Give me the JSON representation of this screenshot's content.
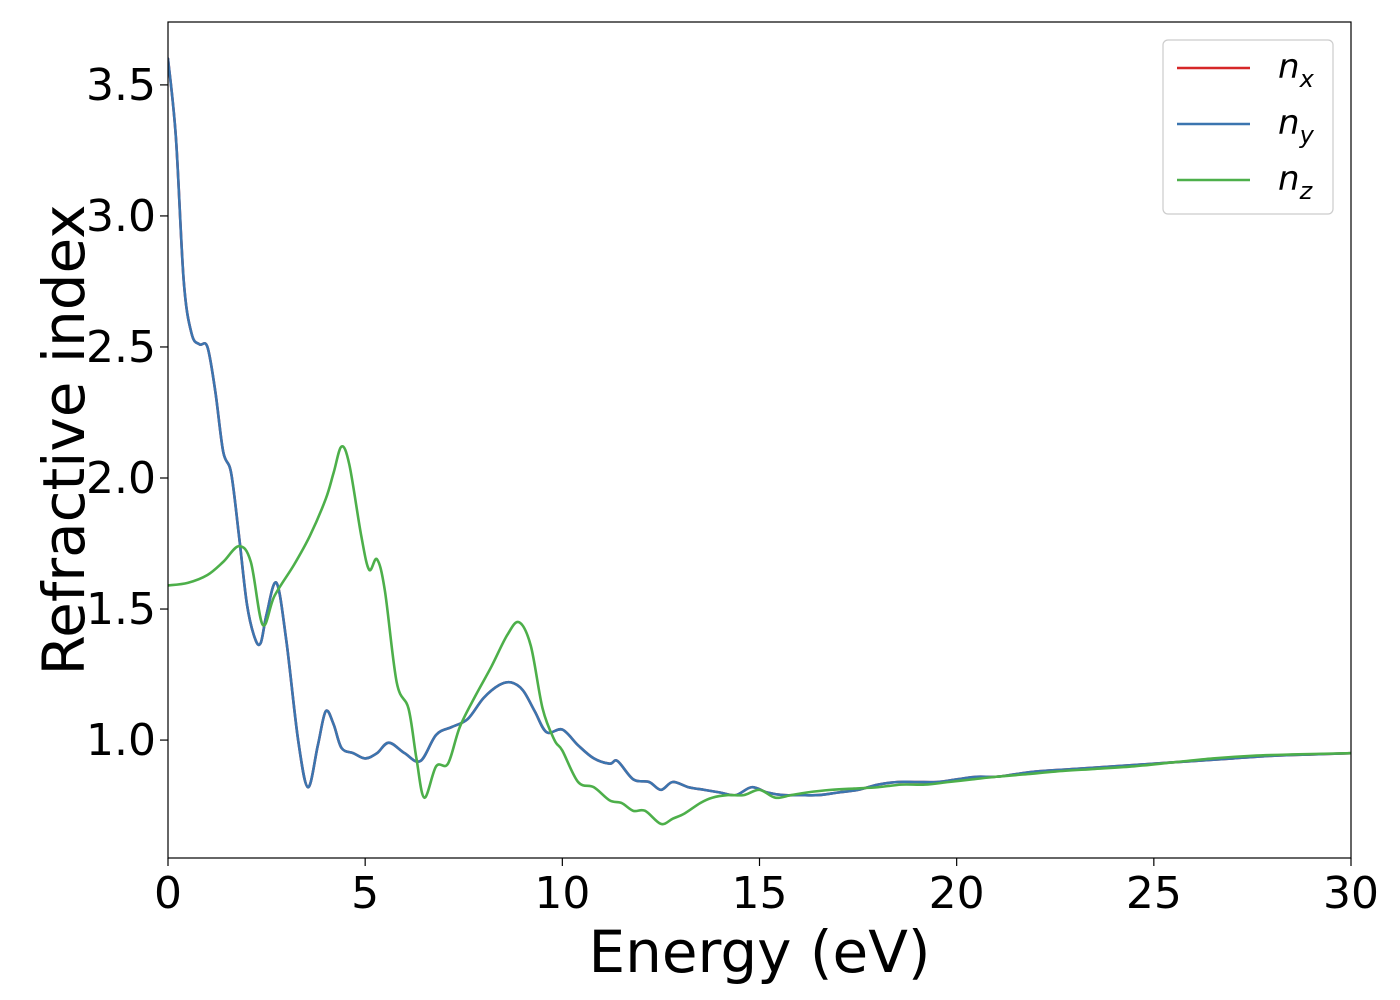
{
  "chart_data": {
    "type": "line",
    "title": "",
    "xlabel": "Energy (eV)",
    "ylabel": "Refractive index",
    "xlim": [
      0,
      30
    ],
    "ylim": [
      0.55,
      3.74
    ],
    "xticks": [
      0,
      5,
      10,
      15,
      20,
      25,
      30
    ],
    "xtick_labels": [
      "0",
      "5",
      "10",
      "15",
      "20",
      "25",
      "30"
    ],
    "yticks": [
      1.0,
      1.5,
      2.0,
      2.5,
      3.0,
      3.5
    ],
    "ytick_labels": [
      "1.0",
      "1.5",
      "2.0",
      "2.5",
      "3.0",
      "3.5"
    ],
    "grid": false,
    "legend_position": "top-right",
    "series": [
      {
        "name": "n_x",
        "label_base": "n",
        "label_sub": "x",
        "color": "#d62728",
        "x": [
          0,
          0.2,
          0.4,
          0.6,
          0.8,
          1.0,
          1.2,
          1.4,
          1.6,
          1.8,
          2.0,
          2.2,
          2.35,
          2.5,
          2.75,
          3.0,
          3.3,
          3.55,
          3.8,
          4.0,
          4.2,
          4.4,
          4.7,
          5.0,
          5.3,
          5.6,
          6.0,
          6.4,
          6.8,
          7.2,
          7.6,
          8.0,
          8.4,
          8.7,
          9.0,
          9.3,
          9.6,
          10.0,
          10.4,
          10.8,
          11.2,
          11.4,
          11.8,
          12.2,
          12.5,
          12.8,
          13.2,
          13.6,
          14.0,
          14.4,
          14.8,
          15.2,
          15.6,
          16.0,
          16.5,
          17.0,
          17.5,
          18.0,
          18.5,
          19.0,
          19.5,
          20.0,
          20.5,
          21.0,
          21.5,
          22.0,
          23.0,
          24.0,
          25.0,
          26.0,
          27.0,
          28.0,
          29.0,
          30.0
        ],
        "y": [
          3.6,
          3.3,
          2.75,
          2.55,
          2.51,
          2.5,
          2.33,
          2.1,
          2.02,
          1.78,
          1.52,
          1.39,
          1.37,
          1.48,
          1.6,
          1.38,
          1.0,
          0.82,
          0.98,
          1.11,
          1.06,
          0.97,
          0.95,
          0.93,
          0.95,
          0.99,
          0.95,
          0.92,
          1.02,
          1.05,
          1.08,
          1.16,
          1.21,
          1.22,
          1.19,
          1.11,
          1.03,
          1.04,
          0.98,
          0.93,
          0.91,
          0.92,
          0.85,
          0.84,
          0.81,
          0.84,
          0.82,
          0.81,
          0.8,
          0.79,
          0.82,
          0.8,
          0.79,
          0.79,
          0.79,
          0.8,
          0.81,
          0.83,
          0.84,
          0.84,
          0.84,
          0.85,
          0.86,
          0.86,
          0.87,
          0.88,
          0.89,
          0.9,
          0.91,
          0.92,
          0.93,
          0.94,
          0.945,
          0.95
        ]
      },
      {
        "name": "n_y",
        "label_base": "n",
        "label_sub": "y",
        "color": "#3b75af",
        "x": [
          0,
          0.2,
          0.4,
          0.6,
          0.8,
          1.0,
          1.2,
          1.4,
          1.6,
          1.8,
          2.0,
          2.2,
          2.35,
          2.5,
          2.75,
          3.0,
          3.3,
          3.55,
          3.8,
          4.0,
          4.2,
          4.4,
          4.7,
          5.0,
          5.3,
          5.6,
          6.0,
          6.4,
          6.8,
          7.2,
          7.6,
          8.0,
          8.4,
          8.7,
          9.0,
          9.3,
          9.6,
          10.0,
          10.4,
          10.8,
          11.2,
          11.4,
          11.8,
          12.2,
          12.5,
          12.8,
          13.2,
          13.6,
          14.0,
          14.4,
          14.8,
          15.2,
          15.6,
          16.0,
          16.5,
          17.0,
          17.5,
          18.0,
          18.5,
          19.0,
          19.5,
          20.0,
          20.5,
          21.0,
          21.5,
          22.0,
          23.0,
          24.0,
          25.0,
          26.0,
          27.0,
          28.0,
          29.0,
          30.0
        ],
        "y": [
          3.6,
          3.3,
          2.75,
          2.55,
          2.51,
          2.5,
          2.33,
          2.1,
          2.02,
          1.78,
          1.52,
          1.39,
          1.37,
          1.48,
          1.6,
          1.38,
          1.0,
          0.82,
          0.98,
          1.11,
          1.06,
          0.97,
          0.95,
          0.93,
          0.95,
          0.99,
          0.95,
          0.92,
          1.02,
          1.05,
          1.08,
          1.16,
          1.21,
          1.22,
          1.19,
          1.11,
          1.03,
          1.04,
          0.98,
          0.93,
          0.91,
          0.92,
          0.85,
          0.84,
          0.81,
          0.84,
          0.82,
          0.81,
          0.8,
          0.79,
          0.82,
          0.8,
          0.79,
          0.79,
          0.79,
          0.8,
          0.81,
          0.83,
          0.84,
          0.84,
          0.84,
          0.85,
          0.86,
          0.86,
          0.87,
          0.88,
          0.89,
          0.9,
          0.91,
          0.92,
          0.93,
          0.94,
          0.945,
          0.95
        ]
      },
      {
        "name": "n_z",
        "label_base": "n",
        "label_sub": "z",
        "color": "#4daf4a",
        "x": [
          0,
          0.5,
          1.0,
          1.4,
          1.8,
          2.1,
          2.4,
          2.7,
          3.2,
          3.6,
          4.0,
          4.2,
          4.4,
          4.6,
          4.9,
          5.1,
          5.3,
          5.5,
          5.8,
          6.1,
          6.3,
          6.5,
          6.8,
          7.1,
          7.4,
          7.8,
          8.2,
          8.6,
          8.9,
          9.2,
          9.5,
          9.8,
          10.0,
          10.4,
          10.8,
          11.2,
          11.5,
          11.8,
          12.1,
          12.5,
          12.8,
          13.1,
          13.5,
          13.8,
          14.2,
          14.6,
          15.0,
          15.4,
          15.8,
          16.2,
          16.8,
          17.4,
          18.0,
          18.6,
          19.2,
          19.8,
          20.4,
          21.0,
          21.8,
          22.5,
          23.5,
          24.5,
          25.5,
          26.5,
          27.5,
          28.5,
          30.0
        ],
        "y": [
          1.59,
          1.6,
          1.63,
          1.68,
          1.74,
          1.68,
          1.44,
          1.55,
          1.67,
          1.78,
          1.92,
          2.02,
          2.12,
          2.05,
          1.78,
          1.65,
          1.69,
          1.57,
          1.22,
          1.12,
          0.93,
          0.78,
          0.9,
          0.91,
          1.05,
          1.17,
          1.28,
          1.4,
          1.45,
          1.36,
          1.12,
          1.0,
          0.96,
          0.84,
          0.82,
          0.77,
          0.76,
          0.73,
          0.73,
          0.68,
          0.7,
          0.72,
          0.76,
          0.78,
          0.79,
          0.79,
          0.81,
          0.78,
          0.79,
          0.8,
          0.81,
          0.815,
          0.82,
          0.83,
          0.83,
          0.84,
          0.85,
          0.86,
          0.87,
          0.88,
          0.89,
          0.9,
          0.915,
          0.93,
          0.94,
          0.945,
          0.95
        ]
      }
    ]
  }
}
